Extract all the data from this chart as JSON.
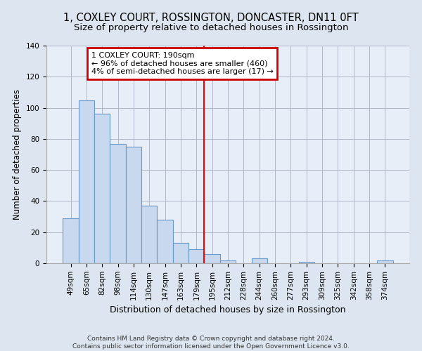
{
  "title": "1, COXLEY COURT, ROSSINGTON, DONCASTER, DN11 0FT",
  "subtitle": "Size of property relative to detached houses in Rossington",
  "xlabel": "Distribution of detached houses by size in Rossington",
  "ylabel": "Number of detached properties",
  "bar_labels": [
    "49sqm",
    "65sqm",
    "82sqm",
    "98sqm",
    "114sqm",
    "130sqm",
    "147sqm",
    "163sqm",
    "179sqm",
    "195sqm",
    "212sqm",
    "228sqm",
    "244sqm",
    "260sqm",
    "277sqm",
    "293sqm",
    "309sqm",
    "325sqm",
    "342sqm",
    "358sqm",
    "374sqm"
  ],
  "bar_values": [
    29,
    105,
    96,
    77,
    75,
    37,
    28,
    13,
    9,
    6,
    2,
    0,
    3,
    0,
    0,
    1,
    0,
    0,
    0,
    0,
    2
  ],
  "bar_color": "#c8d8ee",
  "bar_edge_color": "#6699cc",
  "vline_x": 8.5,
  "vline_color": "red",
  "ylim": [
    0,
    140
  ],
  "yticks": [
    0,
    20,
    40,
    60,
    80,
    100,
    120,
    140
  ],
  "bg_color": "#e8eef8",
  "annotation_text": "1 COXLEY COURT: 190sqm\n← 96% of detached houses are smaller (460)\n4% of semi-detached houses are larger (17) →",
  "annotation_box_facecolor": "white",
  "annotation_box_edgecolor": "#cc0000",
  "footnote": "Contains HM Land Registry data © Crown copyright and database right 2024.\nContains public sector information licensed under the Open Government Licence v3.0.",
  "title_fontsize": 10.5,
  "subtitle_fontsize": 9.5,
  "xlabel_fontsize": 9,
  "ylabel_fontsize": 8.5,
  "tick_fontsize": 7.5,
  "annotation_fontsize": 8,
  "footnote_fontsize": 6.5
}
